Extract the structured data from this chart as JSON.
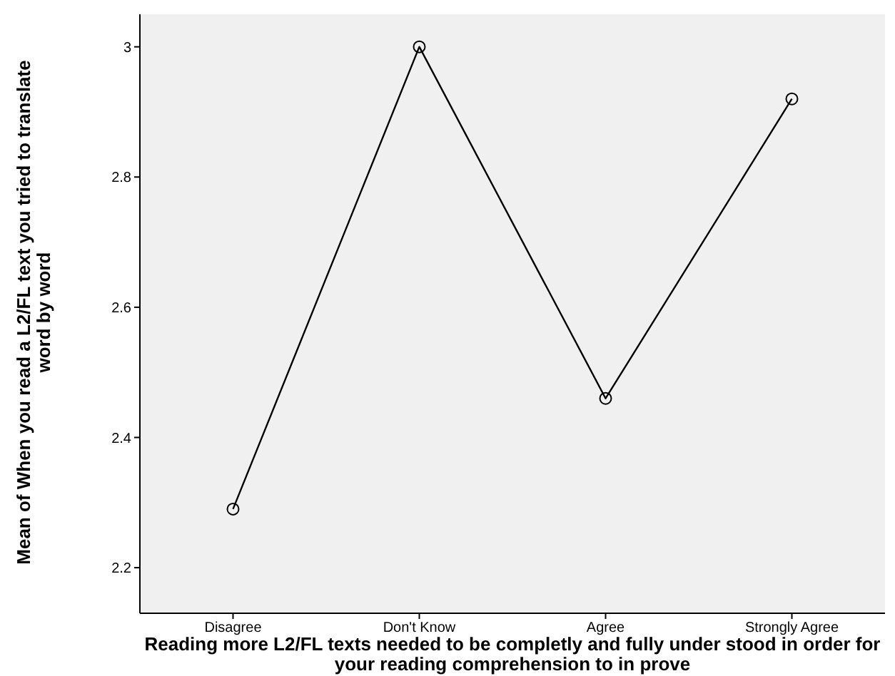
{
  "chart_data": {
    "type": "line",
    "xlabel": "Reading more L2/FL texts needed to be completly and fully under stood in order for your reading comprehension to in prove",
    "ylabel": "Mean of When you read a L2/FL text you tried to translate word by word",
    "categories": [
      "Disagree",
      "Don't Know",
      "Agree",
      "Strongly Agree"
    ],
    "series": [
      {
        "color": "#000000",
        "values": [
          2.29,
          3.0,
          2.46,
          2.92
        ]
      }
    ],
    "ylim": [
      2.13,
      3.05
    ],
    "yticks": [
      2.2,
      2.4,
      2.6,
      2.8,
      3
    ],
    "grid": false,
    "legend": false,
    "marker": "circle",
    "line_style": "solid"
  }
}
